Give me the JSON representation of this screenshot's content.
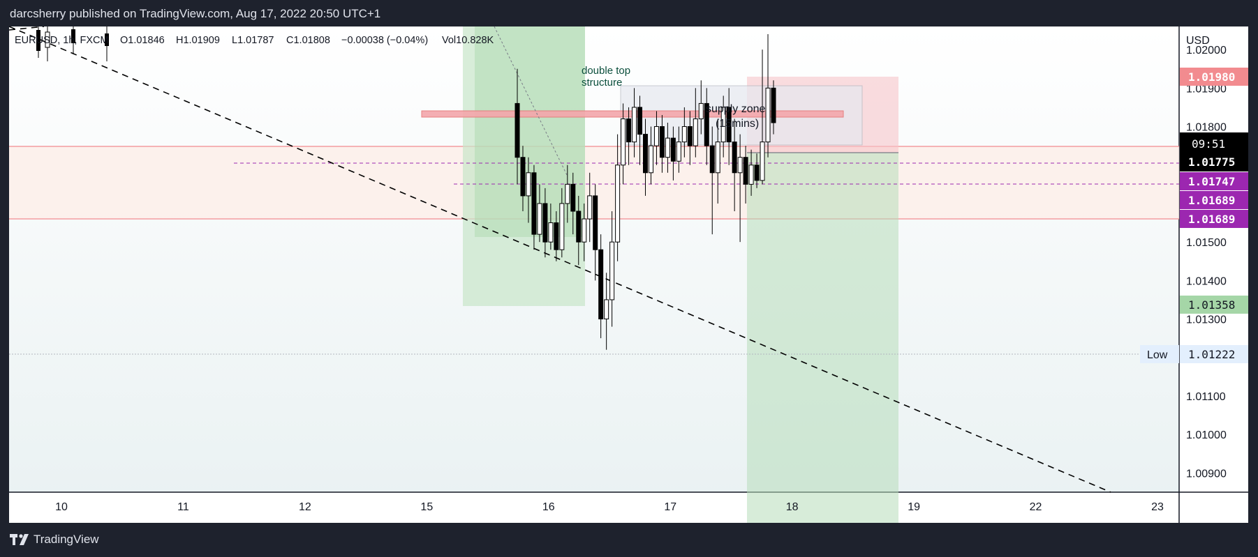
{
  "header": {
    "published": "darcsherry published on TradingView.com, Aug 17, 2022 20:50 UTC+1"
  },
  "legend": {
    "symbol": "EURUSD, 1h, FXCM",
    "open": "O1.01846",
    "high": "H1.01909",
    "low": "L1.01787",
    "close": "C1.01808",
    "change": "−0.00038 (−0.04%)",
    "volume": "Vol10.828K"
  },
  "price_axis": {
    "currency": "USD",
    "ticks": [
      "1.02000",
      "1.01900",
      "1.01800",
      "1.01700",
      "1.01600",
      "1.01500",
      "1.01400",
      "1.01300",
      "1.01200",
      "1.01100",
      "1.01000",
      "1.00900"
    ],
    "labels": {
      "stop": "1.01980",
      "countdown": "09:51",
      "last_price": "1.01775",
      "line_a": "1.01747",
      "line_b": "1.01689",
      "line_c": "1.01689",
      "target": "1.01358",
      "low_value": "1.01222",
      "low_tag": "Low"
    }
  },
  "time_axis": {
    "labels": [
      "10",
      "11",
      "12",
      "15",
      "16",
      "17",
      "18",
      "19",
      "22",
      "23"
    ]
  },
  "annotations": {
    "double_top": [
      "double top",
      "structure"
    ],
    "supply_zone": [
      "supply zone",
      "(15mins)"
    ]
  },
  "brand": {
    "name": "TradingView"
  },
  "colors": {
    "bull_candle": "#ffffff",
    "bear_candle": "#000000",
    "stop_label": "#f28b8f",
    "target_label": "#a5d6a7",
    "line_label": "#9c27b0",
    "last_label": "#000000",
    "low_label_bg": "#e3effd"
  },
  "chart_data": {
    "type": "candlestick",
    "x_axis_labels": [
      "10",
      "11",
      "12",
      "15",
      "16",
      "17",
      "18",
      "19",
      "22",
      "23"
    ],
    "ylim": [
      1.0085,
      1.0206
    ],
    "legend_ohlc": {
      "open": 1.01846,
      "high": 1.01909,
      "low": 1.01787,
      "close": 1.01808
    },
    "levels": {
      "stop": 1.0198,
      "last": 1.01775,
      "line_a": 1.01747,
      "line_b": 1.01689,
      "target": 1.01358,
      "low": 1.01222
    },
    "candles": [
      [
        1.0186,
        1.0172,
        1.0195,
        1.0165
      ],
      [
        1.0172,
        1.0162,
        1.0175,
        1.0158
      ],
      [
        1.0162,
        1.0168,
        1.0172,
        1.0155
      ],
      [
        1.0168,
        1.0152,
        1.017,
        1.0148
      ],
      [
        1.0152,
        1.016,
        1.0165,
        1.015
      ],
      [
        1.016,
        1.015,
        1.0164,
        1.0146
      ],
      [
        1.015,
        1.0155,
        1.016,
        1.0148
      ],
      [
        1.0155,
        1.0148,
        1.0158,
        1.0145
      ],
      [
        1.0148,
        1.016,
        1.0164,
        1.0146
      ],
      [
        1.016,
        1.0165,
        1.017,
        1.0155
      ],
      [
        1.0165,
        1.0158,
        1.0168,
        1.0152
      ],
      [
        1.0158,
        1.015,
        1.0162,
        1.0144
      ],
      [
        1.015,
        1.0156,
        1.016,
        1.0145
      ],
      [
        1.0156,
        1.0162,
        1.0168,
        1.015
      ],
      [
        1.0162,
        1.0148,
        1.0165,
        1.014
      ],
      [
        1.0148,
        1.013,
        1.0152,
        1.0125
      ],
      [
        1.013,
        1.0135,
        1.0142,
        1.0122
      ],
      [
        1.0135,
        1.015,
        1.0158,
        1.0128
      ],
      [
        1.015,
        1.017,
        1.0178,
        1.0145
      ],
      [
        1.017,
        1.0182,
        1.0186,
        1.0165
      ],
      [
        1.0182,
        1.0176,
        1.0185,
        1.017
      ],
      [
        1.0176,
        1.0185,
        1.019,
        1.0172
      ],
      [
        1.0185,
        1.0178,
        1.0188,
        1.017
      ],
      [
        1.0178,
        1.0168,
        1.0182,
        1.0162
      ],
      [
        1.0168,
        1.0175,
        1.018,
        1.0165
      ],
      [
        1.0175,
        1.018,
        1.0184,
        1.017
      ],
      [
        1.018,
        1.0172,
        1.0183,
        1.0168
      ],
      [
        1.0172,
        1.0177,
        1.0181,
        1.0168
      ],
      [
        1.0177,
        1.0171,
        1.018,
        1.0166
      ],
      [
        1.0171,
        1.0176,
        1.018,
        1.0168
      ],
      [
        1.0176,
        1.018,
        1.0185,
        1.0172
      ],
      [
        1.018,
        1.0175,
        1.0184,
        1.017
      ],
      [
        1.0175,
        1.0182,
        1.019,
        1.0172
      ],
      [
        1.0182,
        1.0186,
        1.0192,
        1.0178
      ],
      [
        1.0186,
        1.0175,
        1.019,
        1.017
      ],
      [
        1.0175,
        1.0168,
        1.018,
        1.0152
      ],
      [
        1.0168,
        1.0176,
        1.0182,
        1.016
      ],
      [
        1.0176,
        1.0185,
        1.0188,
        1.0172
      ],
      [
        1.0185,
        1.0176,
        1.019,
        1.017
      ],
      [
        1.0176,
        1.0168,
        1.0182,
        1.0158
      ],
      [
        1.0168,
        1.0172,
        1.0178,
        1.015
      ],
      [
        1.0172,
        1.0165,
        1.0175,
        1.016
      ],
      [
        1.0165,
        1.017,
        1.0174,
        1.0162
      ],
      [
        1.017,
        1.0166,
        1.0173,
        1.0164
      ],
      [
        1.0166,
        1.0176,
        1.02,
        1.0165
      ],
      [
        1.0176,
        1.019,
        1.0204,
        1.0172
      ],
      [
        1.019,
        1.0181,
        1.0192,
        1.0178
      ]
    ]
  }
}
